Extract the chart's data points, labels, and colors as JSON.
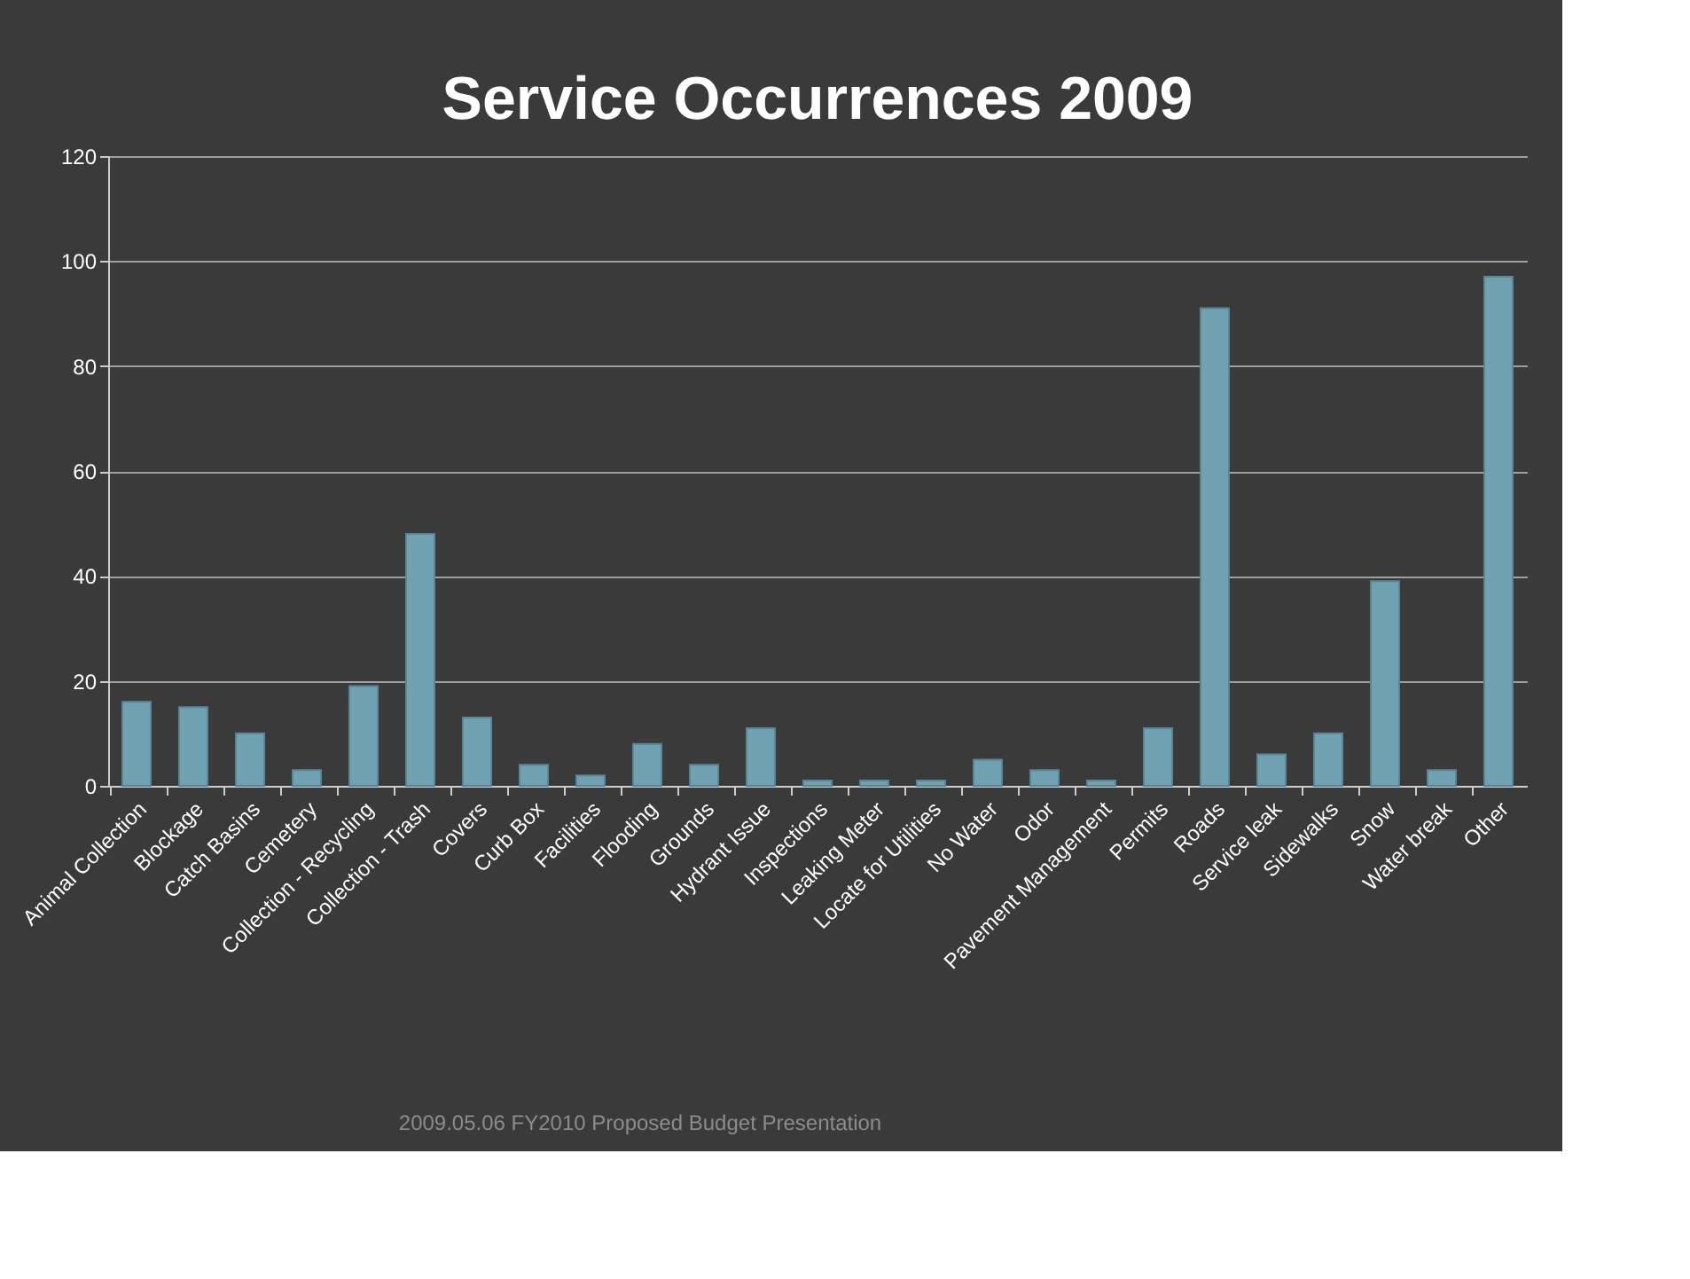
{
  "chart_data": {
    "type": "bar",
    "title": "Service Occurrences 2009",
    "categories": [
      "Animal Collection",
      "Blockage",
      "Catch Basins",
      "Cemetery",
      "Collection - Recycling",
      "Collection - Trash",
      "Covers",
      "Curb Box",
      "Facilities",
      "Flooding",
      "Grounds",
      "Hydrant Issue",
      "Inspections",
      "Leaking Meter",
      "Locate for Utilities",
      "No Water",
      "Odor",
      "Pavement Management",
      "Permits",
      "Roads",
      "Service leak",
      "Sidewalks",
      "Snow",
      "Water break",
      "Other"
    ],
    "values": [
      16,
      15,
      10,
      3,
      19,
      48,
      13,
      4,
      2,
      8,
      4,
      11,
      1,
      1,
      1,
      5,
      3,
      1,
      11,
      91,
      6,
      10,
      39,
      3,
      97
    ],
    "color": "#6fa1b2",
    "ylim": [
      0,
      120
    ],
    "yticks": [
      0,
      20,
      40,
      60,
      80,
      100,
      120
    ],
    "grid": "y",
    "annotations": [
      "2009.05.06 FY2010 Proposed Budget Presentation"
    ]
  }
}
